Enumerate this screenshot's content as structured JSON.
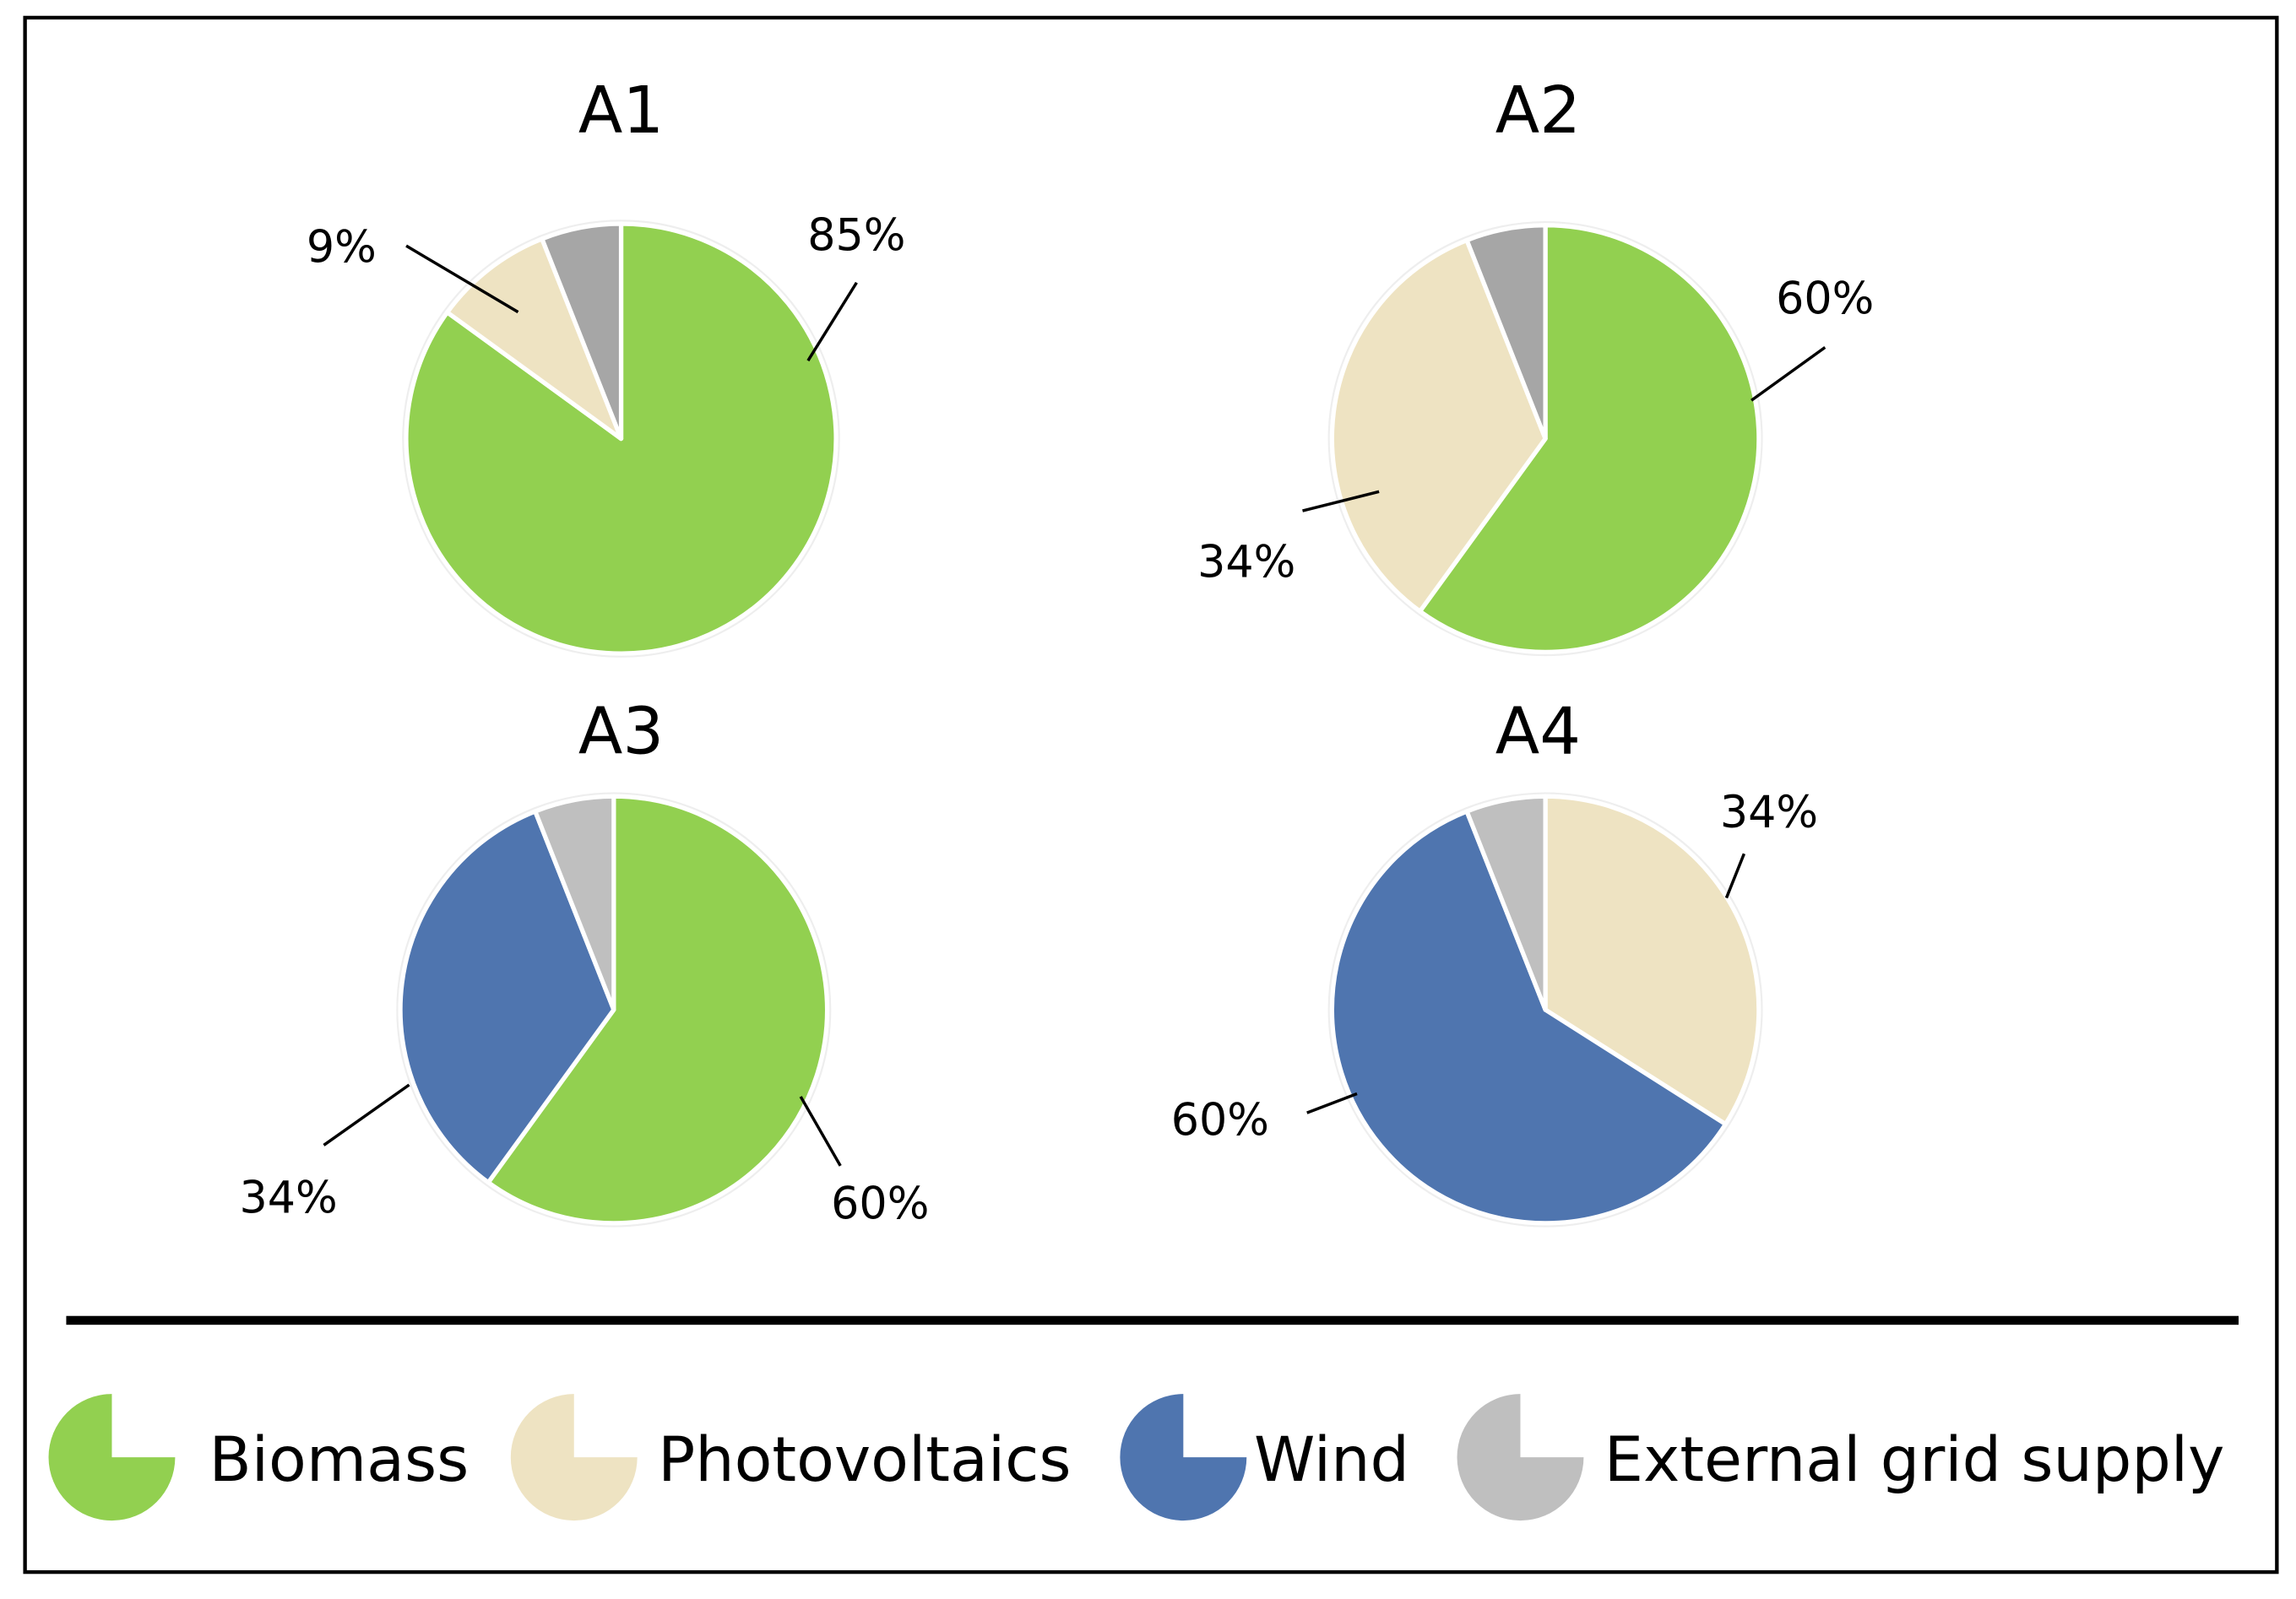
{
  "colors": {
    "biomass": "#92D050",
    "photovoltaics": "#EEE3C2",
    "wind": "#4F75AF",
    "external_grid_dark": "#A6A6A6",
    "external_grid_light": "#BFBFBF",
    "border": "#000000",
    "slice_separator": "#FFFFFF"
  },
  "legend": {
    "items": [
      {
        "label": "Biomass",
        "color": "#92D050"
      },
      {
        "label": "Photovoltaics",
        "color": "#EEE3C2"
      },
      {
        "label": "Wind",
        "color": "#4F75AF"
      },
      {
        "label": "External grid supply",
        "color": "#BFBFBF"
      }
    ]
  },
  "chart_data": [
    {
      "type": "pie",
      "title": "A1",
      "categories": [
        "Biomass",
        "Photovoltaics",
        "External grid supply"
      ],
      "values": [
        85,
        9,
        6
      ],
      "colors": [
        "#92D050",
        "#EEE3C2",
        "#A6A6A6"
      ],
      "data_labels": [
        "85%",
        "9%",
        ""
      ],
      "start_angle_deg": 0,
      "direction": "clockwise"
    },
    {
      "type": "pie",
      "title": "A2",
      "categories": [
        "Biomass",
        "Photovoltaics",
        "External grid supply"
      ],
      "values": [
        60,
        34,
        6
      ],
      "colors": [
        "#92D050",
        "#EEE3C2",
        "#A6A6A6"
      ],
      "data_labels": [
        "60%",
        "34%",
        ""
      ],
      "start_angle_deg": 0,
      "direction": "clockwise"
    },
    {
      "type": "pie",
      "title": "A3",
      "categories": [
        "Biomass",
        "Wind",
        "External grid supply"
      ],
      "values": [
        60,
        34,
        6
      ],
      "colors": [
        "#92D050",
        "#4F75AF",
        "#BFBFBF"
      ],
      "data_labels": [
        "60%",
        "34%",
        ""
      ],
      "start_angle_deg": 0,
      "direction": "clockwise"
    },
    {
      "type": "pie",
      "title": "A4",
      "categories": [
        "Photovoltaics",
        "Wind",
        "External grid supply"
      ],
      "values": [
        34,
        60,
        6
      ],
      "colors": [
        "#EEE3C2",
        "#4F75AF",
        "#BFBFBF"
      ],
      "data_labels": [
        "34%",
        "60%",
        ""
      ],
      "start_angle_deg": 0,
      "direction": "clockwise"
    }
  ]
}
